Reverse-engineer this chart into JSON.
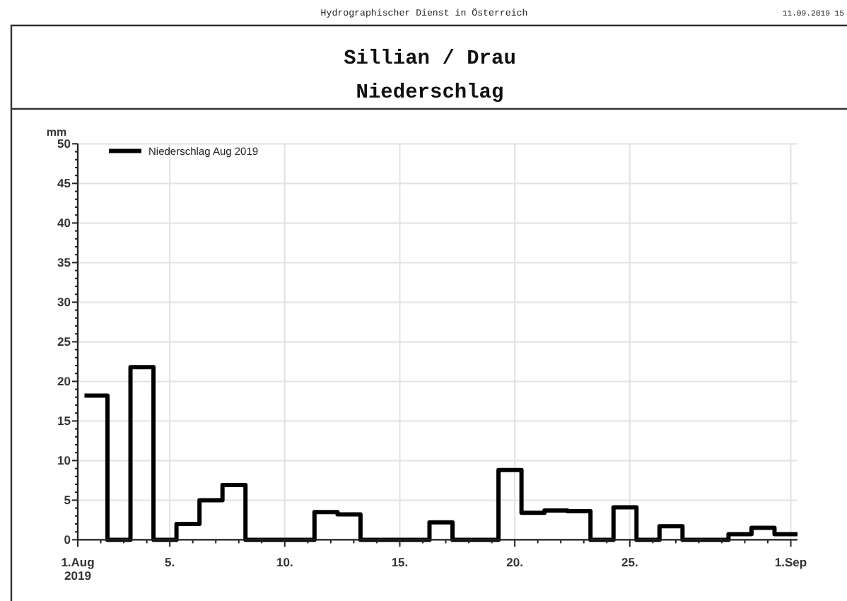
{
  "chart_data": {
    "type": "step",
    "title": "Sillian / Drau",
    "subtitle": "Niederschlag",
    "ylabel": "mm",
    "annotations": [
      "Hydrographischer Dienst in Österreich",
      "11.09.2019 15"
    ],
    "x": [
      "2019-08-01T07:00",
      "2019-08-02T07:00",
      "2019-08-03T07:00",
      "2019-08-04T07:00",
      "2019-08-05T07:00",
      "2019-08-06T07:00",
      "2019-08-07T07:00",
      "2019-08-08T07:00",
      "2019-08-09T07:00",
      "2019-08-10T07:00",
      "2019-08-11T07:00",
      "2019-08-12T07:00",
      "2019-08-13T07:00",
      "2019-08-14T07:00",
      "2019-08-15T07:00",
      "2019-08-16T07:00",
      "2019-08-17T07:00",
      "2019-08-18T07:00",
      "2019-08-19T07:00",
      "2019-08-20T07:00",
      "2019-08-21T07:00",
      "2019-08-22T07:00",
      "2019-08-23T07:00",
      "2019-08-24T07:00",
      "2019-08-25T07:00",
      "2019-08-26T07:00",
      "2019-08-27T07:00",
      "2019-08-28T07:00",
      "2019-08-29T07:00",
      "2019-08-30T07:00",
      "2019-08-31T07:00",
      "2019-09-01T07:00"
    ],
    "series": [
      {
        "name": "Niederschlag Aug 2019",
        "color": "#000000",
        "values": [
          18.2,
          0,
          21.8,
          0,
          2.0,
          5.0,
          6.9,
          0,
          0,
          0,
          3.5,
          3.2,
          0,
          0,
          0,
          2.2,
          0,
          0,
          8.8,
          3.4,
          3.7,
          3.6,
          0,
          4.1,
          0,
          1.7,
          0,
          0,
          0.7,
          1.5,
          0.7,
          0.7
        ]
      }
    ],
    "xlim": [
      "2019-08-01",
      "2019-09-01T07:00"
    ],
    "xticks": [
      {
        "value": "2019-08-01",
        "label": "1.Aug\n2019"
      },
      {
        "value": "2019-08-02",
        "label": null
      },
      {
        "value": "2019-08-03",
        "label": null
      },
      {
        "value": "2019-08-04",
        "label": null
      },
      {
        "value": "2019-08-05",
        "label": "5."
      },
      {
        "value": "2019-08-06",
        "label": null
      },
      {
        "value": "2019-08-07",
        "label": null
      },
      {
        "value": "2019-08-08",
        "label": null
      },
      {
        "value": "2019-08-09",
        "label": null
      },
      {
        "value": "2019-08-10",
        "label": "10."
      },
      {
        "value": "2019-08-11",
        "label": null
      },
      {
        "value": "2019-08-12",
        "label": null
      },
      {
        "value": "2019-08-13",
        "label": null
      },
      {
        "value": "2019-08-14",
        "label": null
      },
      {
        "value": "2019-08-15",
        "label": "15."
      },
      {
        "value": "2019-08-16",
        "label": null
      },
      {
        "value": "2019-08-17",
        "label": null
      },
      {
        "value": "2019-08-18",
        "label": null
      },
      {
        "value": "2019-08-19",
        "label": null
      },
      {
        "value": "2019-08-20",
        "label": "20."
      },
      {
        "value": "2019-08-21",
        "label": null
      },
      {
        "value": "2019-08-22",
        "label": null
      },
      {
        "value": "2019-08-23",
        "label": null
      },
      {
        "value": "2019-08-24",
        "label": null
      },
      {
        "value": "2019-08-25",
        "label": "25."
      },
      {
        "value": "2019-08-26",
        "label": null
      },
      {
        "value": "2019-08-27",
        "label": null
      },
      {
        "value": "2019-08-28",
        "label": null
      },
      {
        "value": "2019-08-29",
        "label": null
      },
      {
        "value": "2019-08-30",
        "label": null
      },
      {
        "value": "2019-08-31",
        "label": null
      },
      {
        "value": "2019-09-01",
        "label": "1.Sep"
      }
    ],
    "ylim": [
      0,
      50
    ],
    "yticks": [
      0,
      {
        "value": 1,
        "label": null
      },
      {
        "value": 2,
        "label": null
      },
      {
        "value": 3,
        "label": null
      },
      {
        "value": 4,
        "label": null
      },
      5,
      {
        "value": 6,
        "label": null
      },
      {
        "value": 7,
        "label": null
      },
      {
        "value": 8,
        "label": null
      },
      {
        "value": 9,
        "label": null
      },
      10,
      {
        "value": 11,
        "label": null
      },
      {
        "value": 12,
        "label": null
      },
      {
        "value": 13,
        "label": null
      },
      {
        "value": 14,
        "label": null
      },
      15,
      {
        "value": 16,
        "label": null
      },
      {
        "value": 17,
        "label": null
      },
      {
        "value": 18,
        "label": null
      },
      {
        "value": 19,
        "label": null
      },
      20,
      {
        "value": 21,
        "label": null
      },
      {
        "value": 22,
        "label": null
      },
      {
        "value": 23,
        "label": null
      },
      {
        "value": 24,
        "label": null
      },
      25,
      {
        "value": 26,
        "label": null
      },
      {
        "value": 27,
        "label": null
      },
      {
        "value": 28,
        "label": null
      },
      {
        "value": 29,
        "label": null
      },
      30,
      {
        "value": 31,
        "label": null
      },
      {
        "value": 32,
        "label": null
      },
      {
        "value": 33,
        "label": null
      },
      {
        "value": 34,
        "label": null
      },
      35,
      {
        "value": 36,
        "label": null
      },
      {
        "value": 37,
        "label": null
      },
      {
        "value": 38,
        "label": null
      },
      {
        "value": 39,
        "label": null
      },
      40,
      {
        "value": 41,
        "label": null
      },
      {
        "value": 42,
        "label": null
      },
      {
        "value": 43,
        "label": null
      },
      {
        "value": 44,
        "label": null
      },
      45,
      {
        "value": 46,
        "label": null
      },
      {
        "value": 47,
        "label": null
      },
      {
        "value": 48,
        "label": null
      },
      {
        "value": 49,
        "label": null
      },
      50
    ],
    "grid": true,
    "legend": "top left"
  }
}
